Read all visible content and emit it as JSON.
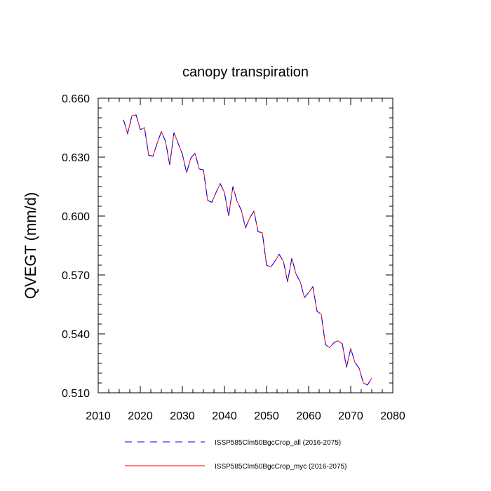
{
  "chart_data": {
    "type": "line",
    "title": "canopy transpiration",
    "xlabel": "",
    "ylabel": "QVEGT  (mm/d)",
    "xlim": [
      2010,
      2080
    ],
    "ylim": [
      0.51,
      0.66
    ],
    "xticks": [
      2010,
      2020,
      2030,
      2040,
      2050,
      2060,
      2070,
      2080
    ],
    "xtick_labels": [
      "2010",
      "2020",
      "2030",
      "2040",
      "2050",
      "2060",
      "2070",
      "2080"
    ],
    "yticks": [
      0.51,
      0.54,
      0.57,
      0.6,
      0.63,
      0.66
    ],
    "ytick_labels": [
      "0.510",
      "0.540",
      "0.570",
      "0.600",
      "0.630",
      "0.660"
    ],
    "grid": false,
    "legend_position": "bottom",
    "x": [
      2016,
      2017,
      2018,
      2019,
      2020,
      2021,
      2022,
      2023,
      2024,
      2025,
      2026,
      2027,
      2028,
      2029,
      2030,
      2031,
      2032,
      2033,
      2034,
      2035,
      2036,
      2037,
      2038,
      2039,
      2040,
      2041,
      2042,
      2043,
      2044,
      2045,
      2046,
      2047,
      2048,
      2049,
      2050,
      2051,
      2052,
      2053,
      2054,
      2055,
      2056,
      2057,
      2058,
      2059,
      2060,
      2061,
      2062,
      2063,
      2064,
      2065,
      2066,
      2067,
      2068,
      2069,
      2070,
      2071,
      2072,
      2073,
      2074,
      2075
    ],
    "series": [
      {
        "name": "ISSP585Clm50BgcCrop_all (2016-2075)",
        "color": "#0000ff",
        "dash": "dashed",
        "values": [
          0.649,
          0.642,
          0.651,
          0.6515,
          0.644,
          0.645,
          0.631,
          0.6305,
          0.637,
          0.643,
          0.638,
          0.626,
          0.6425,
          0.637,
          0.6315,
          0.622,
          0.6295,
          0.632,
          0.624,
          0.6235,
          0.608,
          0.607,
          0.612,
          0.6165,
          0.612,
          0.6,
          0.615,
          0.6075,
          0.603,
          0.594,
          0.599,
          0.6025,
          0.592,
          0.5915,
          0.575,
          0.574,
          0.577,
          0.5805,
          0.577,
          0.5665,
          0.5785,
          0.5705,
          0.5665,
          0.5585,
          0.561,
          0.564,
          0.5515,
          0.55,
          0.5345,
          0.533,
          0.5355,
          0.5365,
          0.535,
          0.523,
          0.5325,
          0.5255,
          0.5225,
          0.515,
          0.514,
          0.5175
        ]
      },
      {
        "name": "ISSP585Clm50BgcCrop_myc (2016-2075)",
        "color": "#ff0000",
        "dash": "solid",
        "values": [
          0.649,
          0.642,
          0.651,
          0.6515,
          0.644,
          0.645,
          0.631,
          0.6305,
          0.637,
          0.643,
          0.638,
          0.626,
          0.6425,
          0.637,
          0.6315,
          0.622,
          0.6295,
          0.632,
          0.624,
          0.6235,
          0.608,
          0.607,
          0.612,
          0.6165,
          0.612,
          0.6,
          0.615,
          0.6075,
          0.603,
          0.594,
          0.599,
          0.6025,
          0.592,
          0.5915,
          0.575,
          0.574,
          0.577,
          0.5805,
          0.577,
          0.5665,
          0.5785,
          0.5705,
          0.5665,
          0.5585,
          0.561,
          0.564,
          0.5515,
          0.55,
          0.5345,
          0.533,
          0.5355,
          0.5365,
          0.535,
          0.523,
          0.5325,
          0.5255,
          0.5225,
          0.515,
          0.514,
          0.5175
        ]
      }
    ]
  }
}
